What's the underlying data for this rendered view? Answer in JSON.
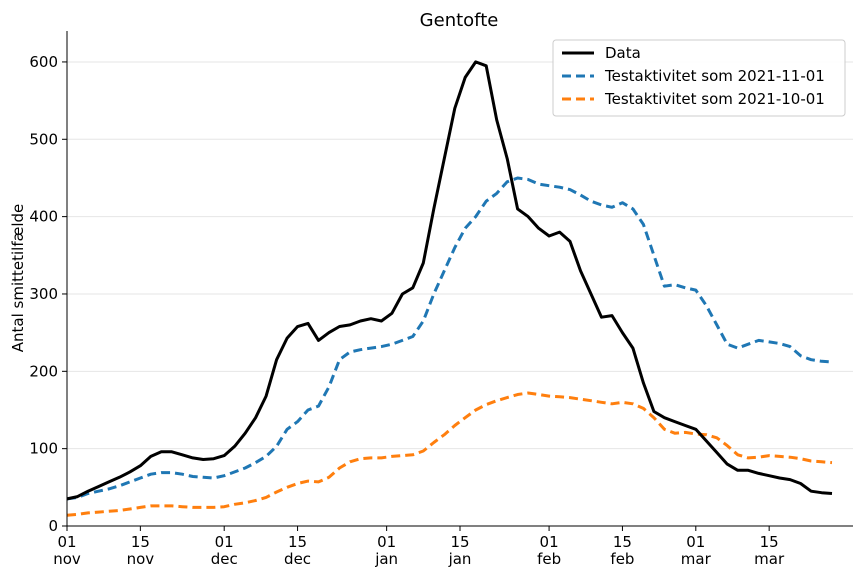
{
  "chart_data": {
    "type": "line",
    "title": "Gentofte",
    "xlabel": "",
    "ylabel": "Antal smittetilfælde",
    "ylim": [
      0,
      640
    ],
    "xlim": [
      "2021-11-01",
      "2022-03-31"
    ],
    "yticks": [
      0,
      100,
      200,
      300,
      400,
      500,
      600
    ],
    "xticks": [
      {
        "date": "2021-11-01",
        "day": "01",
        "month": "nov"
      },
      {
        "date": "2021-11-15",
        "day": "15",
        "month": "nov"
      },
      {
        "date": "2021-12-01",
        "day": "01",
        "month": "dec"
      },
      {
        "date": "2021-12-15",
        "day": "15",
        "month": "dec"
      },
      {
        "date": "2022-01-01",
        "day": "01",
        "month": "jan"
      },
      {
        "date": "2022-01-15",
        "day": "15",
        "month": "jan"
      },
      {
        "date": "2022-02-01",
        "day": "01",
        "month": "feb"
      },
      {
        "date": "2022-02-15",
        "day": "15",
        "month": "feb"
      },
      {
        "date": "2022-03-01",
        "day": "01",
        "month": "mar"
      },
      {
        "date": "2022-03-15",
        "day": "15",
        "month": "mar"
      }
    ],
    "grid": "horizontal",
    "legend_position": "top-right",
    "series": [
      {
        "name": "Data",
        "color": "#000000",
        "style": "solid",
        "x": [
          "2021-11-01",
          "2021-11-03",
          "2021-11-05",
          "2021-11-07",
          "2021-11-09",
          "2021-11-11",
          "2021-11-13",
          "2021-11-15",
          "2021-11-17",
          "2021-11-19",
          "2021-11-21",
          "2021-11-23",
          "2021-11-25",
          "2021-11-27",
          "2021-11-29",
          "2021-12-01",
          "2021-12-03",
          "2021-12-05",
          "2021-12-07",
          "2021-12-09",
          "2021-12-11",
          "2021-12-13",
          "2021-12-15",
          "2021-12-17",
          "2021-12-19",
          "2021-12-21",
          "2021-12-23",
          "2021-12-25",
          "2021-12-27",
          "2021-12-29",
          "2021-12-31",
          "2022-01-02",
          "2022-01-04",
          "2022-01-06",
          "2022-01-08",
          "2022-01-10",
          "2022-01-12",
          "2022-01-14",
          "2022-01-16",
          "2022-01-18",
          "2022-01-20",
          "2022-01-22",
          "2022-01-24",
          "2022-01-26",
          "2022-01-28",
          "2022-01-30",
          "2022-02-01",
          "2022-02-03",
          "2022-02-05",
          "2022-02-07",
          "2022-02-09",
          "2022-02-11",
          "2022-02-13",
          "2022-02-15",
          "2022-02-17",
          "2022-02-19",
          "2022-02-21",
          "2022-02-23",
          "2022-02-25",
          "2022-02-27",
          "2022-03-01",
          "2022-03-03",
          "2022-03-05",
          "2022-03-07",
          "2022-03-09",
          "2022-03-11",
          "2022-03-13",
          "2022-03-15",
          "2022-03-17",
          "2022-03-19",
          "2022-03-21",
          "2022-03-23",
          "2022-03-25",
          "2022-03-27"
        ],
        "values": [
          35,
          38,
          45,
          51,
          57,
          63,
          70,
          78,
          90,
          96,
          96,
          92,
          88,
          86,
          87,
          91,
          103,
          120,
          140,
          168,
          215,
          243,
          258,
          262,
          240,
          250,
          258,
          260,
          265,
          268,
          265,
          275,
          300,
          308,
          340,
          410,
          475,
          540,
          580,
          600,
          595,
          525,
          475,
          410,
          400,
          385,
          375,
          380,
          368,
          330,
          300,
          270,
          272,
          250,
          230,
          185,
          148,
          140,
          135,
          130,
          125,
          110,
          95,
          80,
          72,
          72,
          68,
          65,
          62,
          60,
          55,
          45,
          43,
          42
        ]
      },
      {
        "name": "Testaktivitet som 2021-11-01",
        "color": "#1f77b4",
        "style": "dashed",
        "x": [
          "2021-11-01",
          "2021-11-03",
          "2021-11-05",
          "2021-11-07",
          "2021-11-09",
          "2021-11-11",
          "2021-11-13",
          "2021-11-15",
          "2021-11-17",
          "2021-11-19",
          "2021-11-21",
          "2021-11-23",
          "2021-11-25",
          "2021-11-27",
          "2021-11-29",
          "2021-12-01",
          "2021-12-03",
          "2021-12-05",
          "2021-12-07",
          "2021-12-09",
          "2021-12-11",
          "2021-12-13",
          "2021-12-15",
          "2021-12-17",
          "2021-12-19",
          "2021-12-21",
          "2021-12-23",
          "2021-12-25",
          "2021-12-27",
          "2021-12-29",
          "2021-12-31",
          "2022-01-02",
          "2022-01-04",
          "2022-01-06",
          "2022-01-08",
          "2022-01-10",
          "2022-01-12",
          "2022-01-14",
          "2022-01-16",
          "2022-01-18",
          "2022-01-20",
          "2022-01-22",
          "2022-01-24",
          "2022-01-26",
          "2022-01-28",
          "2022-01-30",
          "2022-02-01",
          "2022-02-03",
          "2022-02-05",
          "2022-02-07",
          "2022-02-09",
          "2022-02-11",
          "2022-02-13",
          "2022-02-15",
          "2022-02-17",
          "2022-02-19",
          "2022-02-21",
          "2022-02-23",
          "2022-02-25",
          "2022-02-27",
          "2022-03-01",
          "2022-03-03",
          "2022-03-05",
          "2022-03-07",
          "2022-03-09",
          "2022-03-11",
          "2022-03-13",
          "2022-03-15",
          "2022-03-17",
          "2022-03-19",
          "2022-03-21",
          "2022-03-23",
          "2022-03-25",
          "2022-03-27"
        ],
        "values": [
          35,
          37,
          42,
          45,
          48,
          52,
          57,
          62,
          67,
          69,
          69,
          67,
          64,
          63,
          62,
          65,
          70,
          75,
          82,
          90,
          103,
          125,
          135,
          150,
          155,
          180,
          215,
          225,
          228,
          230,
          232,
          235,
          240,
          245,
          265,
          300,
          330,
          360,
          385,
          400,
          420,
          430,
          445,
          450,
          448,
          442,
          440,
          438,
          435,
          428,
          420,
          415,
          412,
          418,
          410,
          390,
          350,
          310,
          312,
          308,
          305,
          285,
          260,
          235,
          230,
          235,
          240,
          238,
          236,
          232,
          220,
          215,
          213,
          212
        ]
      },
      {
        "name": "Testaktivitet som 2021-10-01",
        "color": "#ff7f0e",
        "style": "dashed",
        "x": [
          "2021-11-01",
          "2021-11-03",
          "2021-11-05",
          "2021-11-07",
          "2021-11-09",
          "2021-11-11",
          "2021-11-13",
          "2021-11-15",
          "2021-11-17",
          "2021-11-19",
          "2021-11-21",
          "2021-11-23",
          "2021-11-25",
          "2021-11-27",
          "2021-11-29",
          "2021-12-01",
          "2021-12-03",
          "2021-12-05",
          "2021-12-07",
          "2021-12-09",
          "2021-12-11",
          "2021-12-13",
          "2021-12-15",
          "2021-12-17",
          "2021-12-19",
          "2021-12-21",
          "2021-12-23",
          "2021-12-25",
          "2021-12-27",
          "2021-12-29",
          "2021-12-31",
          "2022-01-02",
          "2022-01-04",
          "2022-01-06",
          "2022-01-08",
          "2022-01-10",
          "2022-01-12",
          "2022-01-14",
          "2022-01-16",
          "2022-01-18",
          "2022-01-20",
          "2022-01-22",
          "2022-01-24",
          "2022-01-26",
          "2022-01-28",
          "2022-01-30",
          "2022-02-01",
          "2022-02-03",
          "2022-02-05",
          "2022-02-07",
          "2022-02-09",
          "2022-02-11",
          "2022-02-13",
          "2022-02-15",
          "2022-02-17",
          "2022-02-19",
          "2022-02-21",
          "2022-02-23",
          "2022-02-25",
          "2022-02-27",
          "2022-03-01",
          "2022-03-03",
          "2022-03-05",
          "2022-03-07",
          "2022-03-09",
          "2022-03-11",
          "2022-03-13",
          "2022-03-15",
          "2022-03-17",
          "2022-03-19",
          "2022-03-21",
          "2022-03-23",
          "2022-03-25",
          "2022-03-27"
        ],
        "values": [
          14,
          15,
          17,
          18,
          19,
          20,
          22,
          24,
          26,
          26,
          26,
          25,
          24,
          24,
          24,
          25,
          28,
          30,
          33,
          37,
          44,
          50,
          55,
          58,
          57,
          63,
          75,
          83,
          87,
          88,
          88,
          90,
          91,
          92,
          97,
          108,
          118,
          130,
          140,
          150,
          157,
          162,
          166,
          170,
          172,
          170,
          168,
          167,
          166,
          164,
          162,
          160,
          158,
          160,
          158,
          152,
          140,
          125,
          120,
          121,
          119,
          118,
          114,
          104,
          92,
          88,
          89,
          91,
          90,
          89,
          87,
          84,
          83,
          82
        ]
      }
    ]
  }
}
